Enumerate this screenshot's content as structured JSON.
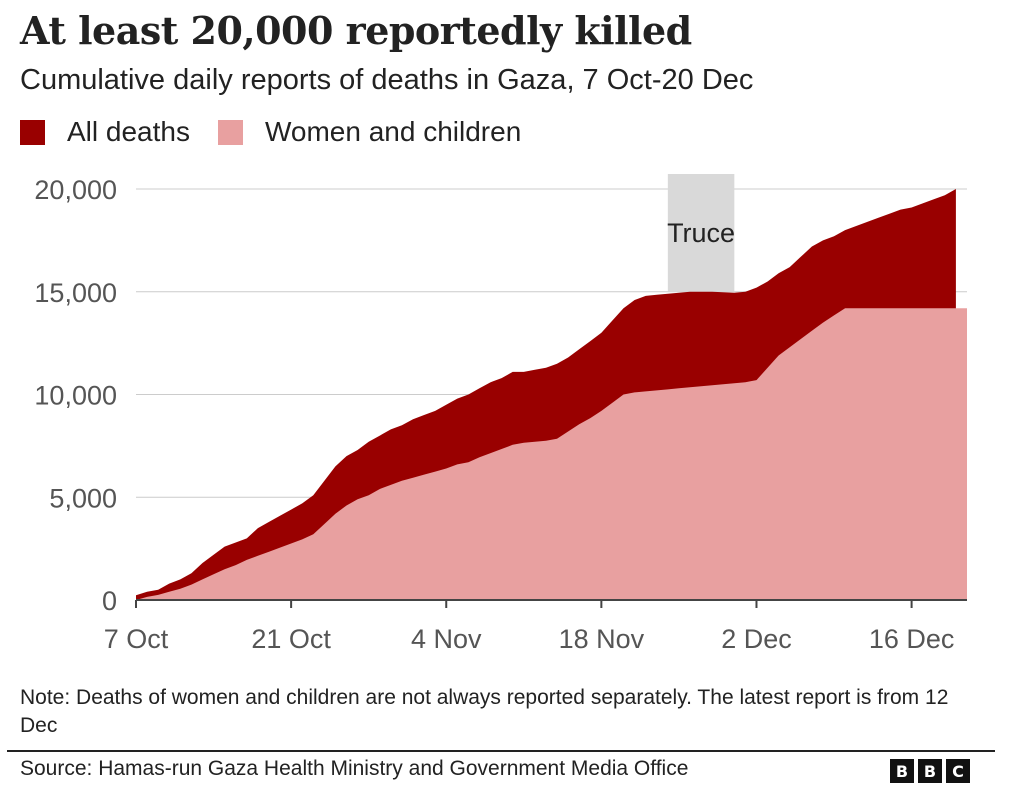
{
  "header": {
    "title": "At least 20,000 reportedly killed",
    "subtitle": "Cumulative daily reports of deaths in Gaza, 7 Oct-20 Dec"
  },
  "legend": [
    {
      "label": "All deaths",
      "color": "#990000"
    },
    {
      "label": "Women and children",
      "color": "#e8a0a0"
    }
  ],
  "chart_data": {
    "type": "area",
    "title": "At least 20,000 reportedly killed",
    "subtitle": "Cumulative daily reports of deaths in Gaza, 7 Oct-20 Dec",
    "xlabel": "",
    "ylabel": "",
    "x_range": [
      "2023-10-07",
      "2023-12-21"
    ],
    "ylim": [
      0,
      20000
    ],
    "y_ticks": [
      0,
      5000,
      10000,
      15000,
      20000
    ],
    "y_tick_labels": [
      "0",
      "5,000",
      "10,000",
      "15,000",
      "20,000"
    ],
    "x_ticks": [
      "2023-10-07",
      "2023-10-21",
      "2023-11-04",
      "2023-11-18",
      "2023-12-02",
      "2023-12-16"
    ],
    "x_tick_labels": [
      "7 Oct",
      "21 Oct",
      "4 Nov",
      "18 Nov",
      "2 Dec",
      "16 Dec"
    ],
    "grid": "horizontal",
    "legend_position": "top-left",
    "series": [
      {
        "name": "All deaths",
        "color": "#990000",
        "points": [
          [
            "2023-10-07",
            230
          ],
          [
            "2023-10-08",
            400
          ],
          [
            "2023-10-09",
            500
          ],
          [
            "2023-10-10",
            800
          ],
          [
            "2023-10-11",
            1000
          ],
          [
            "2023-10-12",
            1300
          ],
          [
            "2023-10-13",
            1800
          ],
          [
            "2023-10-14",
            2200
          ],
          [
            "2023-10-15",
            2600
          ],
          [
            "2023-10-16",
            2800
          ],
          [
            "2023-10-17",
            3000
          ],
          [
            "2023-10-18",
            3500
          ],
          [
            "2023-10-19",
            3800
          ],
          [
            "2023-10-20",
            4100
          ],
          [
            "2023-10-21",
            4400
          ],
          [
            "2023-10-22",
            4700
          ],
          [
            "2023-10-23",
            5100
          ],
          [
            "2023-10-24",
            5800
          ],
          [
            "2023-10-25",
            6500
          ],
          [
            "2023-10-26",
            7000
          ],
          [
            "2023-10-27",
            7300
          ],
          [
            "2023-10-28",
            7700
          ],
          [
            "2023-10-29",
            8000
          ],
          [
            "2023-10-30",
            8300
          ],
          [
            "2023-10-31",
            8500
          ],
          [
            "2023-11-01",
            8800
          ],
          [
            "2023-11-02",
            9000
          ],
          [
            "2023-11-03",
            9200
          ],
          [
            "2023-11-04",
            9500
          ],
          [
            "2023-11-05",
            9800
          ],
          [
            "2023-11-06",
            10000
          ],
          [
            "2023-11-07",
            10300
          ],
          [
            "2023-11-08",
            10600
          ],
          [
            "2023-11-09",
            10800
          ],
          [
            "2023-11-10",
            11100
          ],
          [
            "2023-11-11",
            11100
          ],
          [
            "2023-11-12",
            11200
          ],
          [
            "2023-11-13",
            11300
          ],
          [
            "2023-11-14",
            11500
          ],
          [
            "2023-11-15",
            11800
          ],
          [
            "2023-11-16",
            12200
          ],
          [
            "2023-11-17",
            12600
          ],
          [
            "2023-11-18",
            13000
          ],
          [
            "2023-11-19",
            13600
          ],
          [
            "2023-11-20",
            14200
          ],
          [
            "2023-11-21",
            14600
          ],
          [
            "2023-11-22",
            14800
          ],
          [
            "2023-11-23",
            14850
          ],
          [
            "2023-11-24",
            14900
          ],
          [
            "2023-11-25",
            14950
          ],
          [
            "2023-11-26",
            15000
          ],
          [
            "2023-11-27",
            15000
          ],
          [
            "2023-11-28",
            15000
          ],
          [
            "2023-11-29",
            14980
          ],
          [
            "2023-11-30",
            14950
          ],
          [
            "2023-12-01",
            15000
          ],
          [
            "2023-12-02",
            15200
          ],
          [
            "2023-12-03",
            15500
          ],
          [
            "2023-12-04",
            15900
          ],
          [
            "2023-12-05",
            16200
          ],
          [
            "2023-12-06",
            16700
          ],
          [
            "2023-12-07",
            17200
          ],
          [
            "2023-12-08",
            17500
          ],
          [
            "2023-12-09",
            17700
          ],
          [
            "2023-12-10",
            18000
          ],
          [
            "2023-12-11",
            18200
          ],
          [
            "2023-12-12",
            18400
          ],
          [
            "2023-12-13",
            18600
          ],
          [
            "2023-12-14",
            18800
          ],
          [
            "2023-12-15",
            19000
          ],
          [
            "2023-12-16",
            19100
          ],
          [
            "2023-12-17",
            19300
          ],
          [
            "2023-12-18",
            19500
          ],
          [
            "2023-12-19",
            19700
          ],
          [
            "2023-12-20",
            20000
          ]
        ]
      },
      {
        "name": "Women and children",
        "color": "#e8a0a0",
        "points": [
          [
            "2023-10-07",
            0
          ],
          [
            "2023-10-08",
            150
          ],
          [
            "2023-10-09",
            250
          ],
          [
            "2023-10-10",
            400
          ],
          [
            "2023-10-11",
            550
          ],
          [
            "2023-10-12",
            750
          ],
          [
            "2023-10-13",
            1000
          ],
          [
            "2023-10-14",
            1250
          ],
          [
            "2023-10-15",
            1500
          ],
          [
            "2023-10-16",
            1700
          ],
          [
            "2023-10-17",
            1950
          ],
          [
            "2023-10-18",
            2150
          ],
          [
            "2023-10-19",
            2350
          ],
          [
            "2023-10-20",
            2550
          ],
          [
            "2023-10-21",
            2750
          ],
          [
            "2023-10-22",
            2950
          ],
          [
            "2023-10-23",
            3200
          ],
          [
            "2023-10-24",
            3700
          ],
          [
            "2023-10-25",
            4200
          ],
          [
            "2023-10-26",
            4600
          ],
          [
            "2023-10-27",
            4900
          ],
          [
            "2023-10-28",
            5100
          ],
          [
            "2023-10-29",
            5400
          ],
          [
            "2023-10-30",
            5600
          ],
          [
            "2023-10-31",
            5800
          ],
          [
            "2023-11-01",
            5950
          ],
          [
            "2023-11-02",
            6100
          ],
          [
            "2023-11-03",
            6250
          ],
          [
            "2023-11-04",
            6400
          ],
          [
            "2023-11-05",
            6600
          ],
          [
            "2023-11-06",
            6700
          ],
          [
            "2023-11-07",
            6950
          ],
          [
            "2023-11-08",
            7150
          ],
          [
            "2023-11-09",
            7350
          ],
          [
            "2023-11-10",
            7550
          ],
          [
            "2023-11-11",
            7650
          ],
          [
            "2023-11-12",
            7700
          ],
          [
            "2023-11-13",
            7750
          ],
          [
            "2023-11-14",
            7850
          ],
          [
            "2023-11-15",
            8200
          ],
          [
            "2023-11-16",
            8550
          ],
          [
            "2023-11-17",
            8850
          ],
          [
            "2023-11-18",
            9200
          ],
          [
            "2023-11-19",
            9600
          ],
          [
            "2023-11-20",
            10000
          ],
          [
            "2023-11-21",
            10100
          ],
          [
            "2023-11-22",
            10150
          ],
          [
            "2023-11-23",
            10200
          ],
          [
            "2023-11-24",
            10250
          ],
          [
            "2023-11-25",
            10300
          ],
          [
            "2023-11-26",
            10350
          ],
          [
            "2023-11-27",
            10400
          ],
          [
            "2023-11-28",
            10450
          ],
          [
            "2023-11-29",
            10500
          ],
          [
            "2023-11-30",
            10550
          ],
          [
            "2023-12-01",
            10600
          ],
          [
            "2023-12-02",
            10700
          ],
          [
            "2023-12-03",
            11300
          ],
          [
            "2023-12-04",
            11900
          ],
          [
            "2023-12-05",
            12300
          ],
          [
            "2023-12-06",
            12700
          ],
          [
            "2023-12-07",
            13100
          ],
          [
            "2023-12-08",
            13500
          ],
          [
            "2023-12-09",
            13850
          ],
          [
            "2023-12-10",
            14200
          ],
          [
            "2023-12-11",
            14200
          ],
          [
            "2023-12-12",
            14200
          ],
          [
            "2023-12-21",
            14200
          ]
        ]
      }
    ],
    "annotations": [
      {
        "label": "Truce",
        "start": "2023-11-24",
        "end": "2023-11-30",
        "color": "#d9d9d9"
      }
    ]
  },
  "footer": {
    "note": "Note: Deaths of women and children are not always reported separately. The latest report is from 12 Dec",
    "source": "Source: Hamas-run Gaza Health Ministry and Government Media Office",
    "logo": [
      "B",
      "B",
      "C"
    ]
  }
}
